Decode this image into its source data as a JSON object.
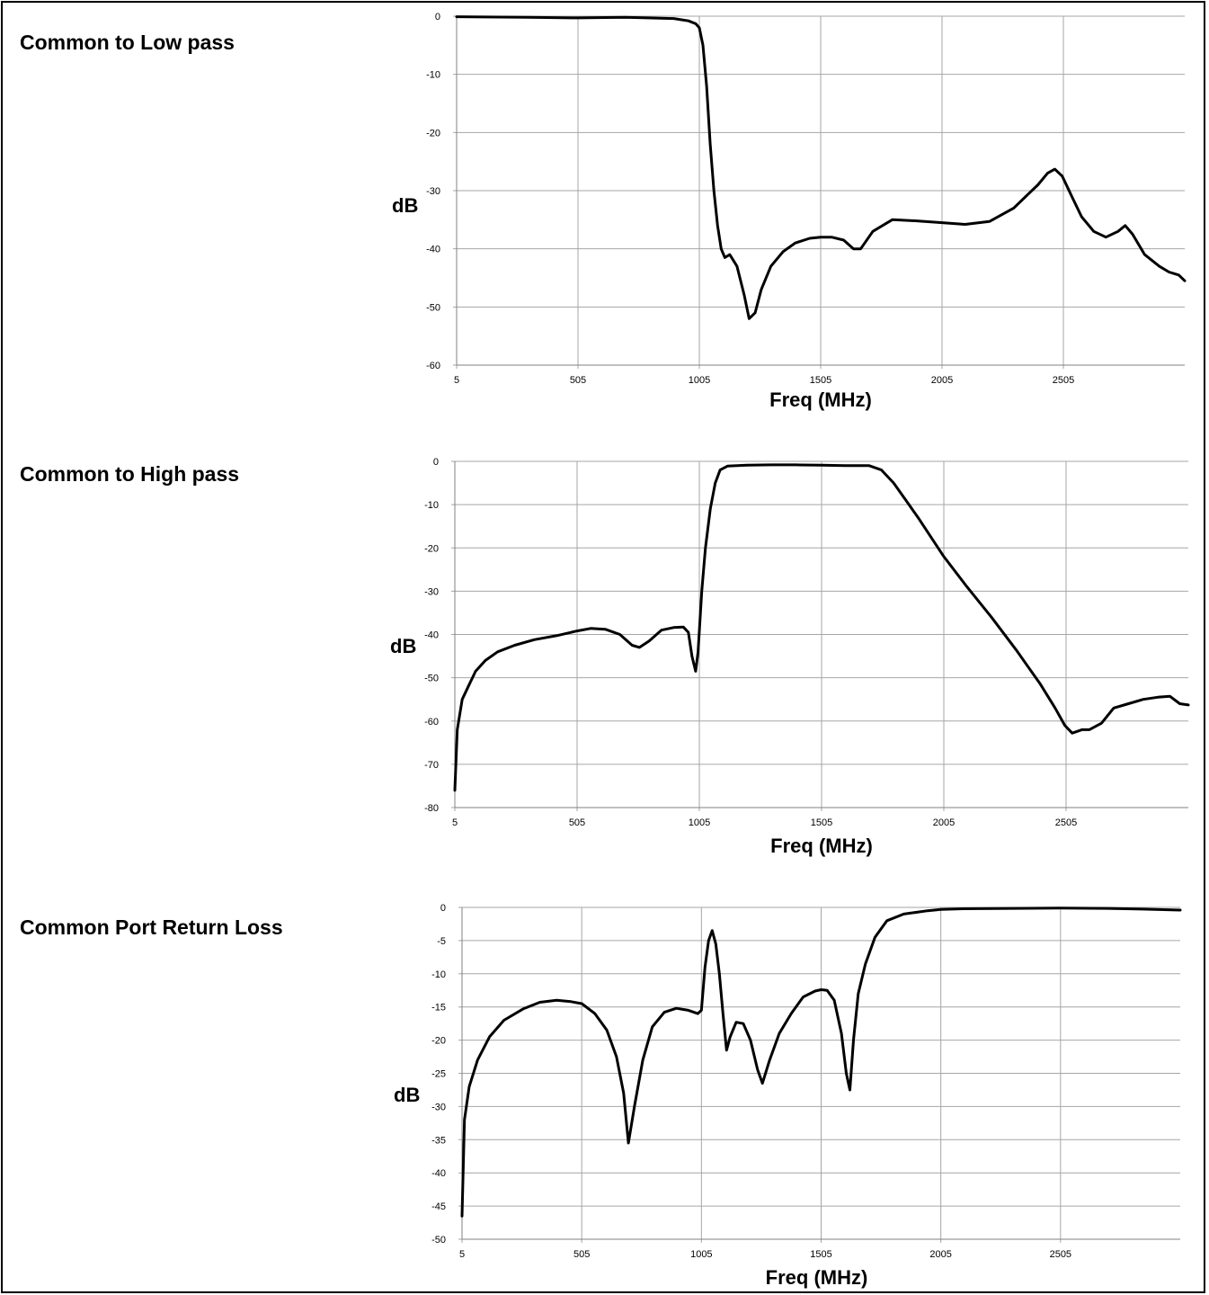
{
  "chart_data": [
    {
      "type": "line",
      "title": "Common to Low pass",
      "xlabel": "Freq (MHz)",
      "ylabel": "dB",
      "xlim": [
        5,
        3005
      ],
      "ylim": [
        -60,
        0
      ],
      "x_ticks": [
        5,
        505,
        1005,
        1505,
        2005,
        2505
      ],
      "y_ticks": [
        0,
        -10,
        -20,
        -30,
        -40,
        -50,
        -60
      ],
      "grid": true,
      "series": [
        {
          "color": "#000000",
          "points": [
            [
              5,
              -0.1
            ],
            [
              300,
              -0.2
            ],
            [
              505,
              -0.3
            ],
            [
              700,
              -0.2
            ],
            [
              900,
              -0.4
            ],
            [
              960,
              -0.8
            ],
            [
              990,
              -1.3
            ],
            [
              1005,
              -2
            ],
            [
              1020,
              -5
            ],
            [
              1035,
              -12
            ],
            [
              1050,
              -22
            ],
            [
              1065,
              -30
            ],
            [
              1080,
              -36
            ],
            [
              1095,
              -40
            ],
            [
              1110,
              -41.5
            ],
            [
              1130,
              -41
            ],
            [
              1160,
              -43
            ],
            [
              1190,
              -48
            ],
            [
              1210,
              -52
            ],
            [
              1235,
              -51
            ],
            [
              1260,
              -47
            ],
            [
              1300,
              -43
            ],
            [
              1350,
              -40.5
            ],
            [
              1400,
              -39
            ],
            [
              1460,
              -38.2
            ],
            [
              1505,
              -38
            ],
            [
              1550,
              -38
            ],
            [
              1600,
              -38.5
            ],
            [
              1640,
              -40
            ],
            [
              1670,
              -40
            ],
            [
              1720,
              -37
            ],
            [
              1800,
              -35
            ],
            [
              1900,
              -35.2
            ],
            [
              2005,
              -35.5
            ],
            [
              2100,
              -35.8
            ],
            [
              2200,
              -35.3
            ],
            [
              2300,
              -33
            ],
            [
              2400,
              -29
            ],
            [
              2440,
              -27
            ],
            [
              2470,
              -26.3
            ],
            [
              2500,
              -27.5
            ],
            [
              2540,
              -31
            ],
            [
              2580,
              -34.5
            ],
            [
              2630,
              -37
            ],
            [
              2680,
              -38
            ],
            [
              2730,
              -37
            ],
            [
              2760,
              -36
            ],
            [
              2790,
              -37.5
            ],
            [
              2840,
              -41
            ],
            [
              2900,
              -43
            ],
            [
              2940,
              -44
            ],
            [
              2980,
              -44.5
            ],
            [
              3005,
              -45.5
            ]
          ]
        }
      ]
    },
    {
      "type": "line",
      "title": "Common to High pass",
      "xlabel": "Freq (MHz)",
      "ylabel": "dB",
      "xlim": [
        5,
        3005
      ],
      "ylim": [
        -80,
        0
      ],
      "x_ticks": [
        5,
        505,
        1005,
        1505,
        2005,
        2505
      ],
      "y_ticks": [
        0,
        -10,
        -20,
        -30,
        -40,
        -50,
        -60,
        -70,
        -80
      ],
      "grid": true,
      "series": [
        {
          "color": "#000000",
          "points": [
            [
              5,
              -76
            ],
            [
              15,
              -62
            ],
            [
              35,
              -55
            ],
            [
              60,
              -52
            ],
            [
              90,
              -48.5
            ],
            [
              130,
              -46
            ],
            [
              180,
              -44
            ],
            [
              250,
              -42.5
            ],
            [
              330,
              -41.2
            ],
            [
              420,
              -40.3
            ],
            [
              505,
              -39.2
            ],
            [
              560,
              -38.6
            ],
            [
              620,
              -38.8
            ],
            [
              680,
              -40
            ],
            [
              730,
              -42.5
            ],
            [
              760,
              -43
            ],
            [
              800,
              -41.5
            ],
            [
              850,
              -39
            ],
            [
              900,
              -38.4
            ],
            [
              940,
              -38.3
            ],
            [
              960,
              -39.5
            ],
            [
              975,
              -45
            ],
            [
              990,
              -48.5
            ],
            [
              1000,
              -44
            ],
            [
              1015,
              -30
            ],
            [
              1030,
              -20
            ],
            [
              1050,
              -11
            ],
            [
              1070,
              -5
            ],
            [
              1090,
              -2
            ],
            [
              1120,
              -1.1
            ],
            [
              1200,
              -0.9
            ],
            [
              1300,
              -0.8
            ],
            [
              1400,
              -0.8
            ],
            [
              1505,
              -0.9
            ],
            [
              1600,
              -1
            ],
            [
              1700,
              -1
            ],
            [
              1750,
              -2
            ],
            [
              1800,
              -5
            ],
            [
              1850,
              -9
            ],
            [
              1900,
              -13
            ],
            [
              2005,
              -22
            ],
            [
              2100,
              -29
            ],
            [
              2200,
              -36
            ],
            [
              2300,
              -43.5
            ],
            [
              2400,
              -51.5
            ],
            [
              2460,
              -57
            ],
            [
              2500,
              -61
            ],
            [
              2530,
              -62.8
            ],
            [
              2570,
              -62
            ],
            [
              2600,
              -62
            ],
            [
              2650,
              -60.5
            ],
            [
              2700,
              -57
            ],
            [
              2760,
              -56
            ],
            [
              2820,
              -55
            ],
            [
              2880,
              -54.5
            ],
            [
              2930,
              -54.3
            ],
            [
              2970,
              -56
            ],
            [
              3005,
              -56.3
            ]
          ]
        }
      ]
    },
    {
      "type": "line",
      "title": "Common Port Return Loss",
      "xlabel": "Freq (MHz)",
      "ylabel": "dB",
      "xlim": [
        5,
        3005
      ],
      "ylim": [
        -50,
        0
      ],
      "x_ticks": [
        5,
        505,
        1005,
        1505,
        2005,
        2505
      ],
      "y_ticks": [
        0,
        -5,
        -10,
        -15,
        -20,
        -25,
        -30,
        -35,
        -40,
        -45,
        -50
      ],
      "grid": true,
      "series": [
        {
          "color": "#000000",
          "points": [
            [
              5,
              -46.5
            ],
            [
              15,
              -32
            ],
            [
              35,
              -27
            ],
            [
              70,
              -23
            ],
            [
              120,
              -19.5
            ],
            [
              180,
              -17
            ],
            [
              260,
              -15.3
            ],
            [
              330,
              -14.3
            ],
            [
              400,
              -14
            ],
            [
              460,
              -14.2
            ],
            [
              505,
              -14.5
            ],
            [
              560,
              -16
            ],
            [
              610,
              -18.5
            ],
            [
              650,
              -22.5
            ],
            [
              680,
              -28
            ],
            [
              700,
              -35.5
            ],
            [
              725,
              -30
            ],
            [
              760,
              -23
            ],
            [
              800,
              -18
            ],
            [
              850,
              -15.8
            ],
            [
              900,
              -15.2
            ],
            [
              950,
              -15.5
            ],
            [
              990,
              -16
            ],
            [
              1005,
              -15.5
            ],
            [
              1020,
              -9
            ],
            [
              1035,
              -5
            ],
            [
              1050,
              -3.5
            ],
            [
              1065,
              -5.5
            ],
            [
              1080,
              -10
            ],
            [
              1095,
              -16
            ],
            [
              1110,
              -21.5
            ],
            [
              1125,
              -19.5
            ],
            [
              1150,
              -17.3
            ],
            [
              1180,
              -17.5
            ],
            [
              1210,
              -20
            ],
            [
              1240,
              -24.5
            ],
            [
              1260,
              -26.5
            ],
            [
              1290,
              -23
            ],
            [
              1330,
              -19
            ],
            [
              1380,
              -16
            ],
            [
              1430,
              -13.5
            ],
            [
              1480,
              -12.6
            ],
            [
              1505,
              -12.4
            ],
            [
              1530,
              -12.5
            ],
            [
              1560,
              -14
            ],
            [
              1590,
              -19
            ],
            [
              1610,
              -25
            ],
            [
              1625,
              -27.5
            ],
            [
              1640,
              -20
            ],
            [
              1660,
              -13
            ],
            [
              1690,
              -8.5
            ],
            [
              1730,
              -4.5
            ],
            [
              1780,
              -2
            ],
            [
              1850,
              -1
            ],
            [
              1950,
              -0.5
            ],
            [
              2005,
              -0.3
            ],
            [
              2100,
              -0.2
            ],
            [
              2300,
              -0.15
            ],
            [
              2505,
              -0.1
            ],
            [
              2700,
              -0.15
            ],
            [
              2900,
              -0.3
            ],
            [
              3005,
              -0.4
            ]
          ]
        }
      ]
    }
  ]
}
